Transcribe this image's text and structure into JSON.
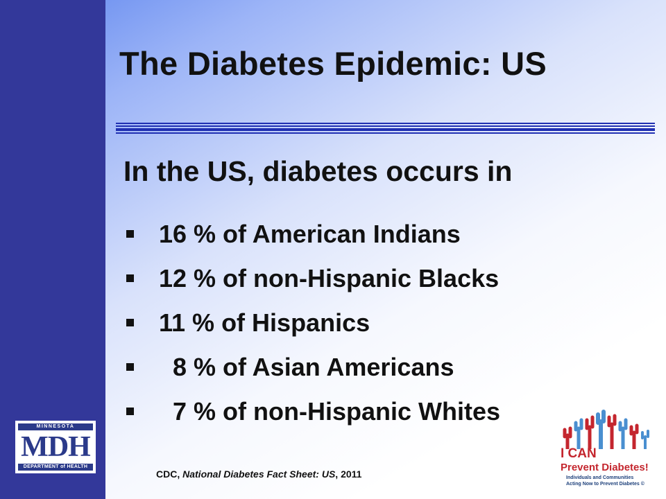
{
  "slide": {
    "title": "The Diabetes Epidemic: US",
    "subtitle": "In the US, diabetes occurs in",
    "bullets": [
      "16 % of American Indians",
      "12 % of non-Hispanic Blacks",
      "11 % of Hispanics",
      "  8 % of Asian Americans",
      "  7 % of non-Hispanic Whites"
    ],
    "citation": {
      "prefix": "CDC, ",
      "source": "National Diabetes Fact Sheet: US",
      "suffix": ", 2011"
    }
  },
  "logos": {
    "mdh": {
      "top": "MINNESOTA",
      "main": "MDH",
      "bottom": "DEPARTMENT of HEALTH"
    },
    "ican": {
      "line1": "I CAN",
      "line2": "Prevent Diabetes!",
      "line3": "Individuals and Communities",
      "line4": "Acting Now to Prevent Diabetes ©"
    }
  },
  "colors": {
    "sidebar": "#33389a",
    "rule": "#1f2fb2",
    "gradient_start": "#5f86ee",
    "text": "#111111",
    "ican_red": "#c4262e",
    "ican_blue": "#1c3f7a"
  }
}
